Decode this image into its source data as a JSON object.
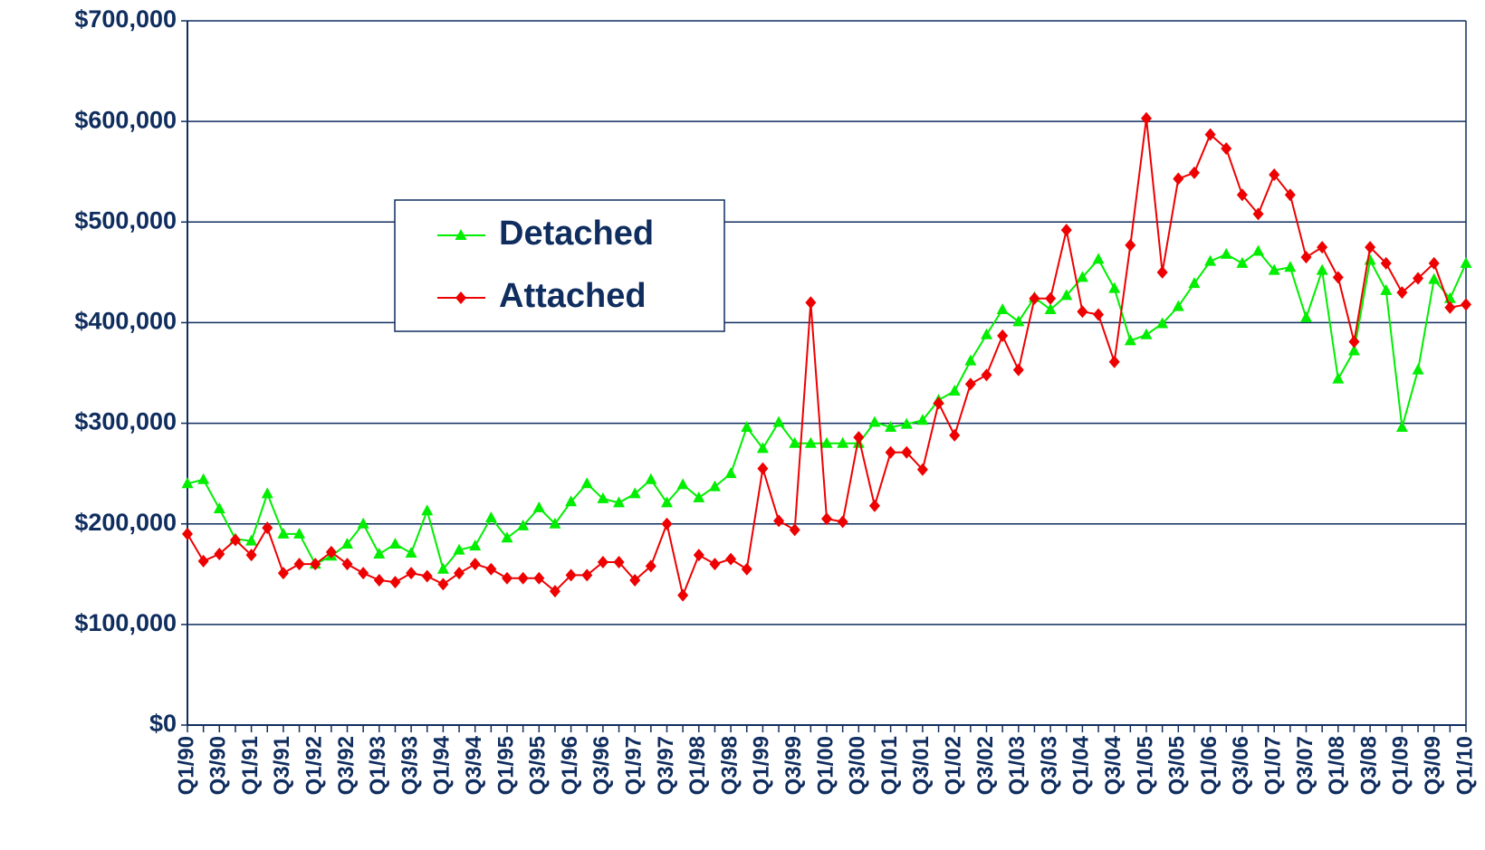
{
  "chart_data": {
    "type": "line",
    "categories": [
      "Q1/90",
      null,
      "Q3/90",
      null,
      "Q1/91",
      null,
      "Q3/91",
      null,
      "Q1/92",
      null,
      "Q3/92",
      null,
      "Q1/93",
      null,
      "Q3/93",
      null,
      "Q1/94",
      null,
      "Q3/94",
      null,
      "Q1/95",
      null,
      "Q3/95",
      null,
      "Q1/96",
      null,
      "Q3/96",
      null,
      "Q1/97",
      null,
      "Q3/97",
      null,
      "Q1/98",
      null,
      "Q3/98",
      null,
      "Q1/99",
      null,
      "Q3/99",
      null,
      "Q1/00",
      null,
      "Q3/00",
      null,
      "Q1/01",
      null,
      "Q3/01",
      null,
      "Q1/02",
      null,
      "Q3/02",
      null,
      "Q1/03",
      null,
      "Q3/03",
      null,
      "Q1/04",
      null,
      "Q3/04",
      null,
      "Q1/05",
      null,
      "Q3/05",
      null,
      "Q1/06",
      null,
      "Q3/06",
      null,
      "Q1/07",
      null,
      "Q3/07",
      null,
      "Q1/08",
      null,
      "Q3/08",
      null,
      "Q1/09",
      null,
      "Q3/09",
      null,
      "Q1/10"
    ],
    "series": [
      {
        "name": "Detached",
        "color": "#00ee00",
        "marker": "triangle",
        "values": [
          240000,
          244000,
          215000,
          185000,
          183000,
          230000,
          190000,
          190000,
          160000,
          168000,
          180000,
          200000,
          170000,
          180000,
          171000,
          213000,
          155000,
          174000,
          178000,
          206000,
          186000,
          198000,
          216000,
          200000,
          222000,
          240000,
          225000,
          221000,
          230000,
          244000,
          221000,
          239000,
          226000,
          237000,
          250000,
          296000,
          275000,
          301000,
          280000,
          280000,
          280000,
          280000,
          280000,
          301000,
          296000,
          299000,
          303000,
          323000,
          332000,
          362000,
          388000,
          413000,
          401000,
          425000,
          413000,
          427000,
          445000,
          463000,
          434000,
          382000,
          388000,
          399000,
          416000,
          439000,
          461000,
          468000,
          459000,
          471000,
          452000,
          455000,
          405000,
          452000,
          344000,
          372000,
          462000,
          432000,
          296000,
          353000,
          443000,
          424000,
          459000
        ]
      },
      {
        "name": "Attached",
        "color": "#ee0000",
        "marker": "diamond",
        "values": [
          190000,
          163000,
          170000,
          184000,
          169000,
          196000,
          151000,
          160000,
          160000,
          172000,
          160000,
          151000,
          144000,
          142000,
          151000,
          148000,
          140000,
          151000,
          160000,
          155000,
          146000,
          146000,
          146000,
          133000,
          149000,
          149000,
          162000,
          162000,
          144000,
          158000,
          200000,
          129000,
          169000,
          160000,
          165000,
          155000,
          255000,
          203000,
          194000,
          420000,
          205000,
          202000,
          286000,
          218000,
          271000,
          271000,
          254000,
          320000,
          288000,
          339000,
          348000,
          387000,
          353000,
          424000,
          424000,
          492000,
          411000,
          408000,
          361000,
          477000,
          603000,
          450000,
          543000,
          549000,
          587000,
          573000,
          527000,
          508000,
          547000,
          527000,
          465000,
          475000,
          445000,
          381000,
          475000,
          459000,
          430000,
          444000,
          459000,
          415000,
          418000
        ]
      }
    ],
    "ylim": [
      0,
      700000
    ],
    "yticks": [
      {
        "value": 0,
        "label": "$0"
      },
      {
        "value": 100000,
        "label": "$100,000"
      },
      {
        "value": 200000,
        "label": "$200,000"
      },
      {
        "value": 300000,
        "label": "$300,000"
      },
      {
        "value": 400000,
        "label": "$400,000"
      },
      {
        "value": 500000,
        "label": "$500,000"
      },
      {
        "value": 600000,
        "label": "$600,000"
      },
      {
        "value": 700000,
        "label": "$700,000"
      }
    ],
    "grid": true
  }
}
